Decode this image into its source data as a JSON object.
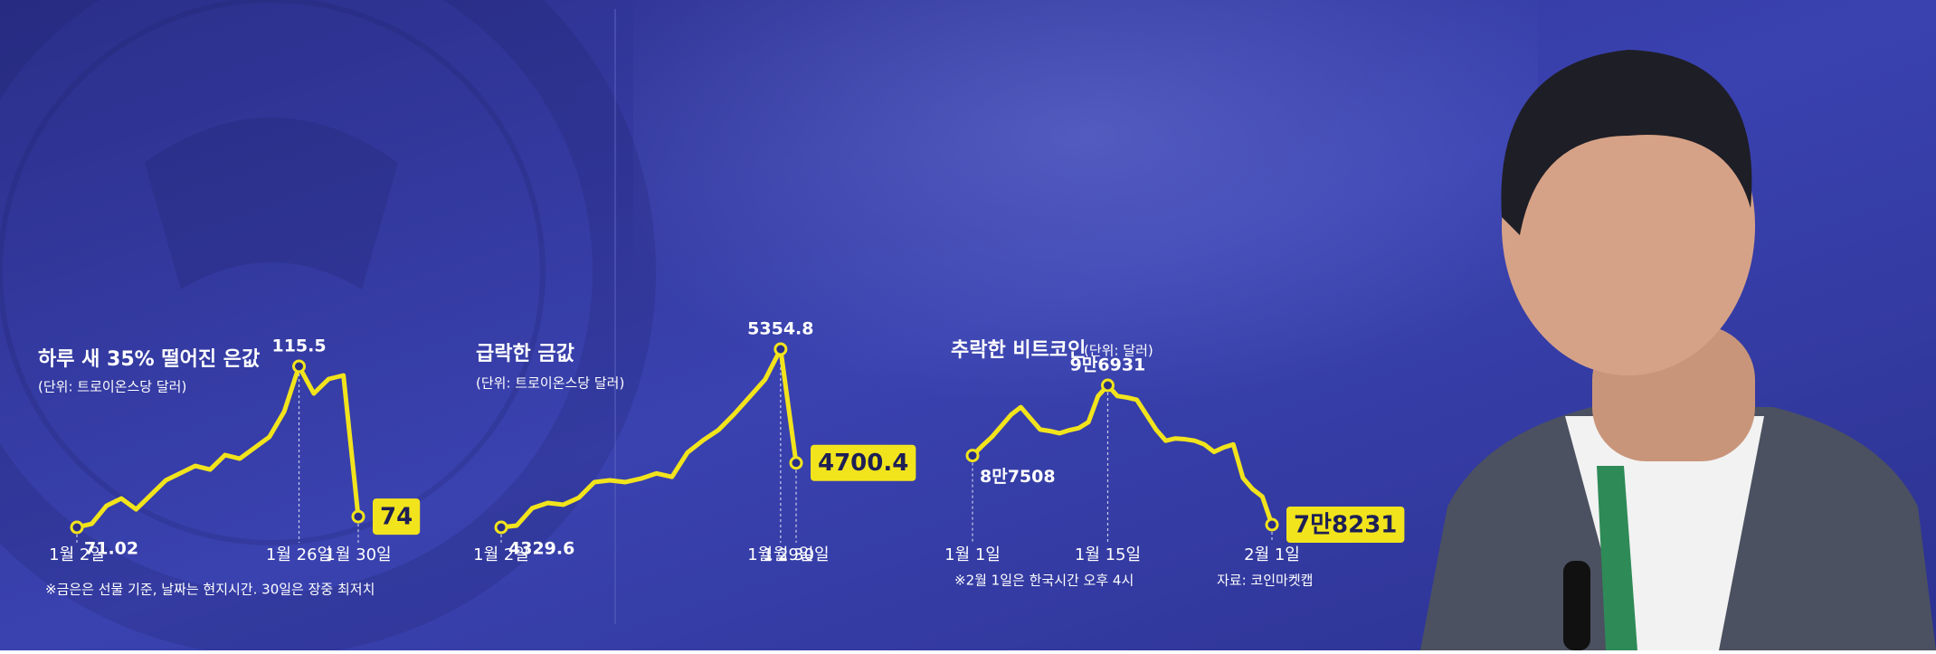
{
  "chart_data": [
    {
      "type": "line",
      "title": "하루 새 35% 떨어진 은값",
      "unit": "(단위: 트로이온스당 달러)",
      "categories": [
        "1월 2일",
        null,
        null,
        null,
        null,
        null,
        null,
        null,
        null,
        null,
        null,
        null,
        null,
        null,
        null,
        "1월 26일",
        null,
        null,
        null,
        "1월 30일"
      ],
      "values": [
        71.02,
        72,
        77,
        79,
        76,
        80,
        84,
        86,
        88,
        87,
        91,
        90,
        93,
        96,
        103,
        115.5,
        108,
        112,
        113,
        74
      ],
      "value_labels": [
        "71.02",
        null,
        null,
        null,
        null,
        null,
        null,
        null,
        null,
        null,
        null,
        null,
        null,
        null,
        null,
        "115.5",
        null,
        null,
        null,
        "74"
      ],
      "color": "#f2e41c",
      "note": "※금은은 선물 기준, 날짜는 현지시간. 30일은 장중 최저치"
    },
    {
      "type": "line",
      "title": "급락한 금값",
      "unit": "(단위: 트로이온스당 달러)",
      "categories": [
        "1월 2일",
        null,
        null,
        null,
        null,
        null,
        null,
        null,
        null,
        null,
        null,
        null,
        null,
        null,
        null,
        null,
        null,
        null,
        "1월 29일",
        "1월 30일"
      ],
      "values": [
        4329.6,
        4340,
        4440,
        4470,
        4460,
        4500,
        4590,
        4600,
        4590,
        4610,
        4640,
        4620,
        4760,
        4830,
        4890,
        4980,
        5080,
        5180,
        5354.8,
        4700.4
      ],
      "value_labels": [
        "4329.6",
        null,
        null,
        null,
        null,
        null,
        null,
        null,
        null,
        null,
        null,
        null,
        null,
        null,
        null,
        null,
        null,
        null,
        "5354.8",
        "4700.4"
      ],
      "color": "#f2e41c"
    },
    {
      "type": "line",
      "title": "추락한 비트코인",
      "unit": "(단위: 달러)",
      "categories": [
        "1월 1일",
        null,
        null,
        null,
        null,
        null,
        null,
        null,
        null,
        null,
        null,
        null,
        null,
        null,
        "1월 15일",
        null,
        null,
        null,
        null,
        null,
        null,
        null,
        null,
        null,
        null,
        null,
        null,
        null,
        null,
        null,
        null,
        "2월 1일"
      ],
      "values": [
        87508,
        88800,
        90000,
        91500,
        93000,
        94000,
        92500,
        91000,
        90800,
        90500,
        90900,
        91200,
        92000,
        95500,
        96931,
        95500,
        95300,
        95000,
        93000,
        91000,
        89500,
        89800,
        89700,
        89500,
        89000,
        88000,
        88600,
        89000,
        84500,
        83000,
        82000,
        78231
      ],
      "value_labels": [
        "8만7508",
        null,
        null,
        null,
        null,
        null,
        null,
        null,
        null,
        null,
        null,
        null,
        null,
        null,
        "9만6931",
        null,
        null,
        null,
        null,
        null,
        null,
        null,
        null,
        null,
        null,
        null,
        null,
        null,
        null,
        null,
        null,
        "7만8231"
      ],
      "color": "#f2e41c",
      "note": "※2월 1일은 한국시간 오후 4시",
      "source": "자료: 코인마켓캡"
    }
  ]
}
